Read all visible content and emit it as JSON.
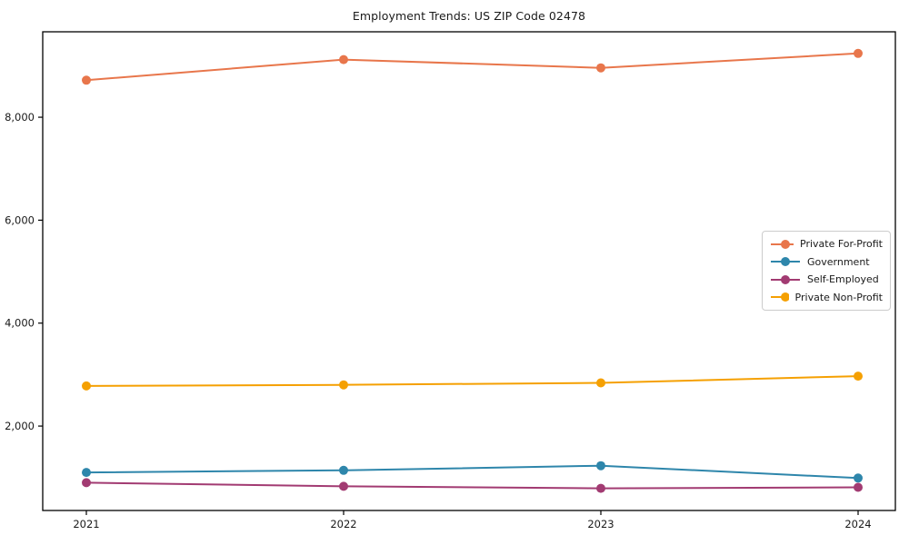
{
  "title": "Employment Trends: US ZIP Code 02478",
  "chart_data": {
    "type": "line",
    "title": "Employment Trends: US ZIP Code 02478",
    "xlabel": "",
    "ylabel": "",
    "categories": [
      "2021",
      "2022",
      "2023",
      "2024"
    ],
    "series": [
      {
        "name": "Private For-Profit",
        "color": "#E8764B",
        "values": [
          8720,
          9120,
          8960,
          9240
        ]
      },
      {
        "name": "Government",
        "color": "#2E86AB",
        "values": [
          1100,
          1140,
          1230,
          990
        ]
      },
      {
        "name": "Self-Employed",
        "color": "#A23B72",
        "values": [
          900,
          830,
          790,
          810
        ]
      },
      {
        "name": "Private Non-Profit",
        "color": "#F5A002",
        "values": [
          2780,
          2800,
          2840,
          2970
        ]
      }
    ],
    "ylim": [
      360,
      9660
    ],
    "yticks": [
      2000,
      4000,
      6000,
      8000
    ],
    "ytick_labels": [
      "2,000",
      "4,000",
      "6,000",
      "8,000"
    ],
    "grid": false,
    "legend_position": "center right",
    "marker": "circle",
    "axis_color": "#000000",
    "text_color": "#1a1a1a"
  }
}
